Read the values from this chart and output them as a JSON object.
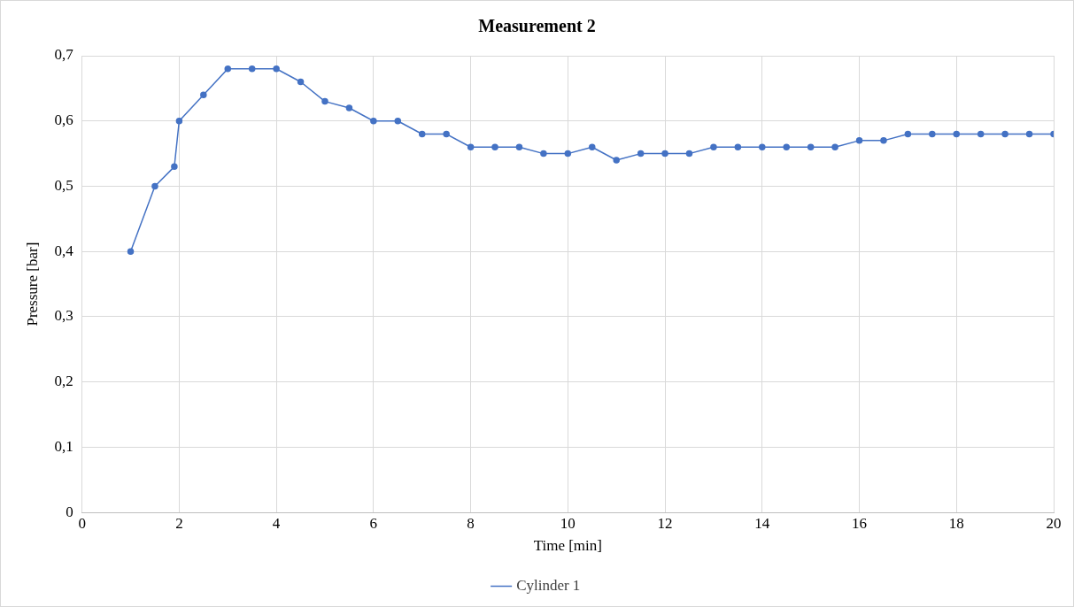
{
  "chart_data": {
    "type": "line",
    "title": "Measurement 2",
    "xlabel": "Time [min]",
    "ylabel": "Pressure [bar]",
    "xlim": [
      0,
      20
    ],
    "xticks": [
      0,
      2,
      4,
      6,
      8,
      10,
      12,
      14,
      16,
      18,
      20
    ],
    "ylim": [
      0,
      0.7
    ],
    "yticks": [
      0,
      {
        "value": 0.1,
        "label": "0,1"
      },
      {
        "value": 0.2,
        "label": "0,2"
      },
      {
        "value": 0.3,
        "label": "0,3"
      },
      {
        "value": 0.4,
        "label": "0,4"
      },
      {
        "value": 0.5,
        "label": "0,5"
      },
      {
        "value": 0.6,
        "label": "0,6"
      },
      {
        "value": 0.7,
        "label": "0,7"
      }
    ],
    "grid": true,
    "legend": "bottom",
    "marker": "circle",
    "line_style": "solid",
    "series": [
      {
        "name": "Cylinder 1",
        "color": "#4472c4",
        "x": [
          1,
          1.5,
          1.9,
          2,
          2.5,
          3,
          3.5,
          4,
          4.5,
          5,
          5.5,
          6,
          6.5,
          7,
          7.5,
          8,
          8.5,
          9,
          9.5,
          10,
          10.5,
          11,
          11.5,
          12,
          12.5,
          13,
          13.5,
          14,
          14.5,
          15,
          15.5,
          16,
          16.5,
          17,
          17.5,
          18,
          18.5,
          19,
          19.5,
          20
        ],
        "values": [
          0.4,
          0.5,
          0.53,
          0.6,
          0.64,
          0.68,
          0.68,
          0.68,
          0.66,
          0.63,
          0.62,
          0.6,
          0.6,
          0.58,
          0.58,
          0.56,
          0.56,
          0.56,
          0.55,
          0.55,
          0.56,
          0.54,
          0.55,
          0.55,
          0.55,
          0.56,
          0.56,
          0.56,
          0.56,
          0.56,
          0.56,
          0.57,
          0.57,
          0.58,
          0.58,
          0.58,
          0.58,
          0.58,
          0.58,
          0.58
        ]
      }
    ]
  }
}
